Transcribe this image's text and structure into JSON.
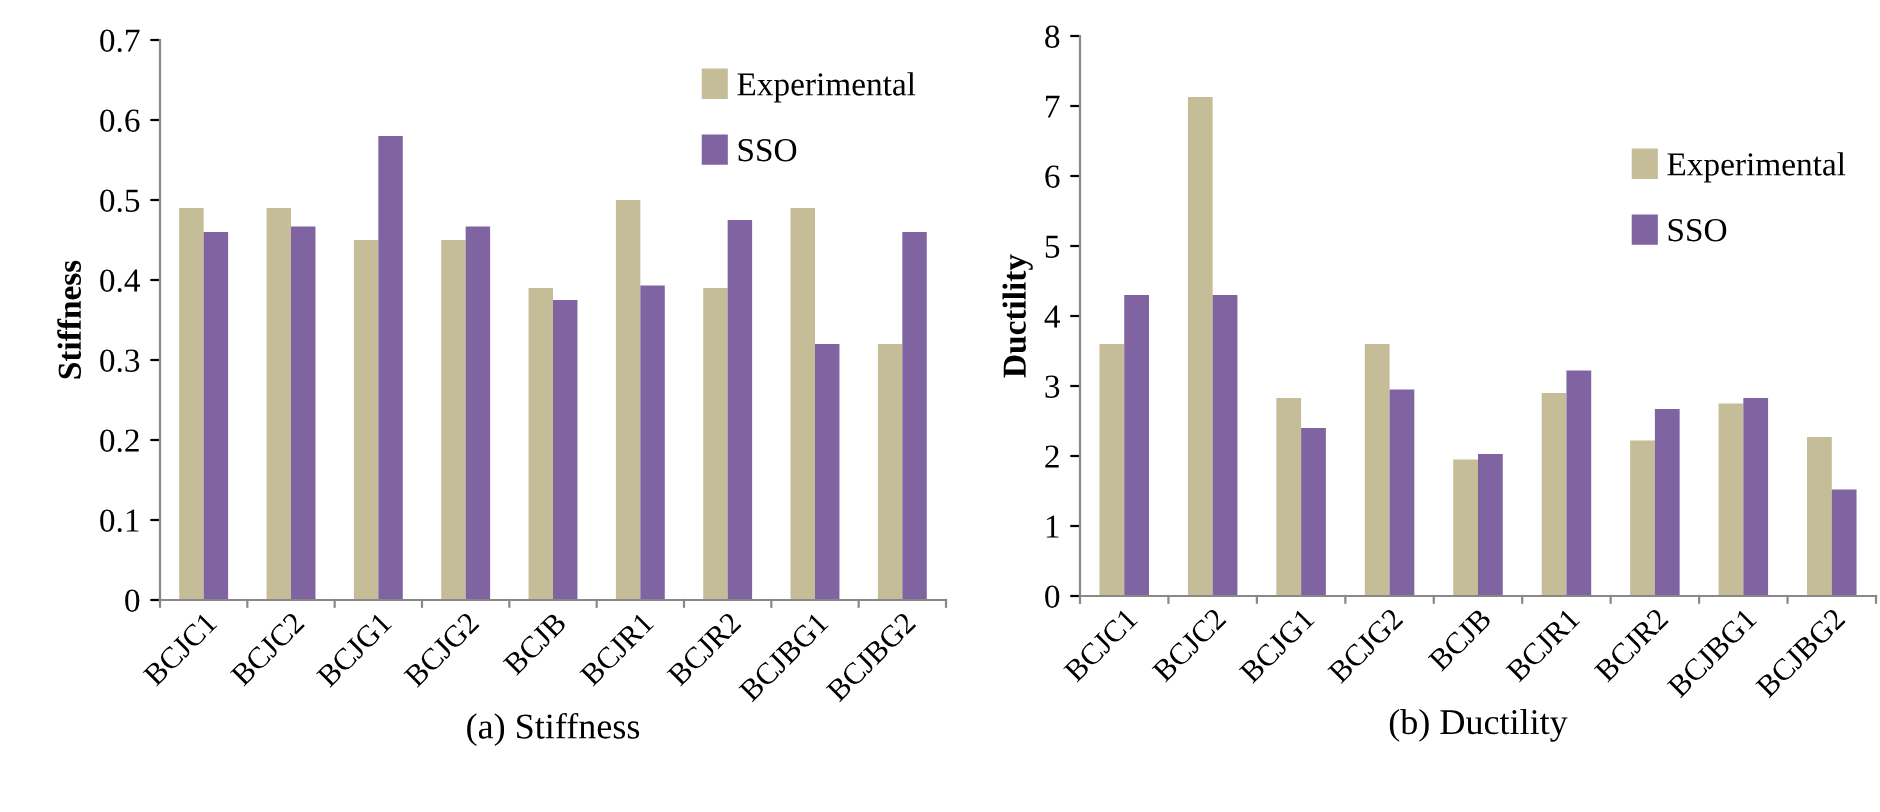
{
  "chart_data": [
    {
      "type": "bar",
      "xlabel": "(a) Stiffness",
      "ylabel": "Stiffness",
      "categories": [
        "BCJC1",
        "BCJC2",
        "BCJG1",
        "BCJG2",
        "BCJB",
        "BCJR1",
        "BCJR2",
        "BCJBG1",
        "BCJBG2"
      ],
      "series": [
        {
          "name": "Experimental",
          "color": "#c4bd97",
          "values": [
            0.49,
            0.49,
            0.45,
            0.45,
            0.39,
            0.5,
            0.39,
            0.49,
            0.32
          ]
        },
        {
          "name": "SSO",
          "color": "#8064a2",
          "values": [
            0.46,
            0.467,
            0.58,
            0.467,
            0.375,
            0.393,
            0.475,
            0.32,
            0.46
          ]
        }
      ],
      "ylim": [
        0,
        0.7
      ],
      "yticks": [
        {
          "value": 0,
          "label": "0"
        },
        0.1,
        0.2,
        0.3,
        0.4,
        0.5,
        0.6,
        0.7
      ],
      "legend": "top right",
      "grid": false
    },
    {
      "type": "bar",
      "xlabel": "(b) Ductility",
      "ylabel": "Ductility",
      "categories": [
        "BCJC1",
        "BCJC2",
        "BCJG1",
        "BCJG2",
        "BCJB",
        "BCJR1",
        "BCJR2",
        "BCJBG1",
        "BCJBG2"
      ],
      "series": [
        {
          "name": "Experimental",
          "color": "#c4bd97",
          "values": [
            3.6,
            7.13,
            2.83,
            3.6,
            1.95,
            2.9,
            2.22,
            2.75,
            2.27
          ]
        },
        {
          "name": "SSO",
          "color": "#8064a2",
          "values": [
            4.3,
            4.3,
            2.4,
            2.95,
            2.03,
            3.22,
            2.67,
            2.83,
            1.52
          ]
        }
      ],
      "ylim": [
        0,
        8
      ],
      "yticks": [
        0,
        1,
        2,
        3,
        4,
        5,
        6,
        7,
        8
      ],
      "legend": "right",
      "grid": false
    }
  ]
}
